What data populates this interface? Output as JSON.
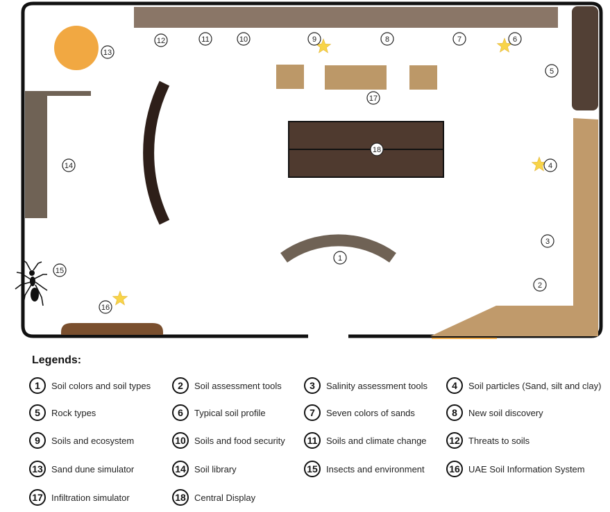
{
  "colors": {
    "wall": "#111111",
    "top_shelf": "#8a7667",
    "dark_brown": "#2e1f19",
    "gray_brown": "#6f6255",
    "tan": "#bc9868",
    "right_upper_wall": "#524035",
    "right_tan_wall": "#c09a6b",
    "sand_dune": "#f1a842",
    "bench": "#7a4f2e",
    "central_display": "#4f3a2f",
    "star": "#f8d448"
  },
  "map_labels": [
    {
      "id": "1",
      "text": "1"
    },
    {
      "id": "2",
      "text": "2"
    },
    {
      "id": "3",
      "text": "3"
    },
    {
      "id": "4",
      "text": "4"
    },
    {
      "id": "5",
      "text": "5"
    },
    {
      "id": "6",
      "text": "6"
    },
    {
      "id": "7",
      "text": "7"
    },
    {
      "id": "8",
      "text": "8"
    },
    {
      "id": "9",
      "text": "9"
    },
    {
      "id": "10",
      "text": "10"
    },
    {
      "id": "11",
      "text": "11"
    },
    {
      "id": "12",
      "text": "12"
    },
    {
      "id": "13",
      "text": "13"
    },
    {
      "id": "14",
      "text": "14"
    },
    {
      "id": "15",
      "text": "15"
    },
    {
      "id": "16",
      "text": "16"
    },
    {
      "id": "17",
      "text": "17"
    },
    {
      "id": "18",
      "text": "18"
    }
  ],
  "legend": {
    "title": "Legends:",
    "items": [
      {
        "number": "1",
        "label": "Soil colors and soil types"
      },
      {
        "number": "2",
        "label": "Soil assessment tools"
      },
      {
        "number": "3",
        "label": "Salinity assessment tools"
      },
      {
        "number": "4",
        "label": "Soil particles (Sand, silt and clay)"
      },
      {
        "number": "5",
        "label": "Rock types"
      },
      {
        "number": "6",
        "label": "Typical soil profile"
      },
      {
        "number": "7",
        "label": "Seven colors of sands"
      },
      {
        "number": "8",
        "label": "New soil discovery"
      },
      {
        "number": "9",
        "label": "Soils and ecosystem"
      },
      {
        "number": "10",
        "label": "Soils and food security"
      },
      {
        "number": "11",
        "label": "Soils and climate change"
      },
      {
        "number": "12",
        "label": "Threats to soils"
      },
      {
        "number": "13",
        "label": "Sand dune simulator"
      },
      {
        "number": "14",
        "label": "Soil library"
      },
      {
        "number": "15",
        "label": "Insects and environment"
      },
      {
        "number": "16",
        "label": "UAE Soil Information System"
      },
      {
        "number": "17",
        "label": "Infiltration simulator"
      },
      {
        "number": "18",
        "label": "Central Display"
      }
    ]
  }
}
